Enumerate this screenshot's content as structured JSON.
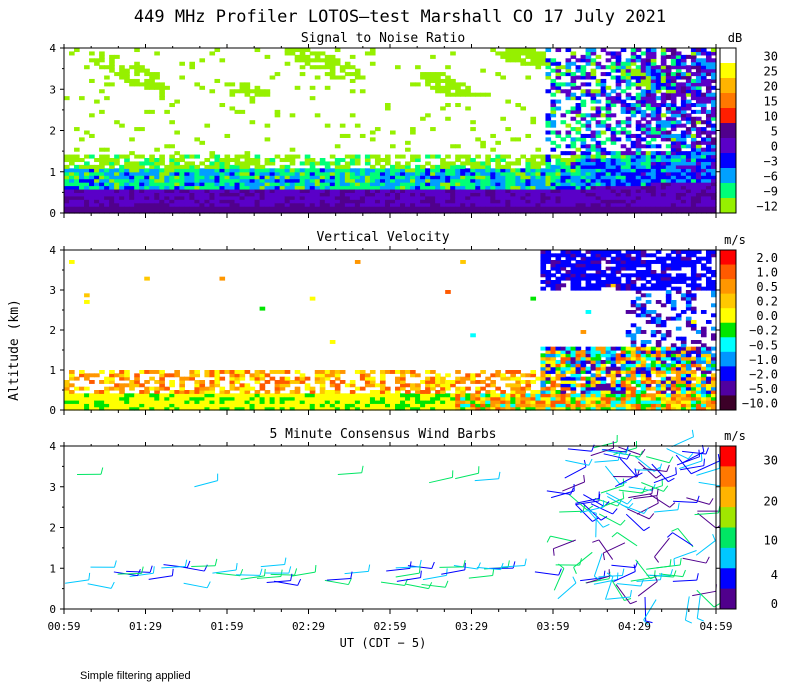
{
  "title": "449 MHz Profiler LOTOS—test Marshall CO 17 July 2021",
  "ylabel": "Altitude (km)",
  "xlabel": "UT  (CDT − 5)",
  "footnote": "Simple filtering applied",
  "x_ticks": [
    "00:59",
    "01:29",
    "01:59",
    "02:29",
    "02:59",
    "03:29",
    "03:59",
    "04:29",
    "04:59"
  ],
  "y_ticks": [
    "0",
    "1",
    "2",
    "3",
    "4"
  ],
  "chart_data": [
    {
      "type": "heatmap",
      "title": "Signal to Noise Ratio",
      "x_range_hours": [
        0.983,
        4.983
      ],
      "ylim": [
        0,
        4
      ],
      "colorbar_unit": "dB",
      "colorbar_labels": [
        "30",
        "25",
        "20",
        "15",
        "10",
        "5",
        "0",
        "−3",
        "−6",
        "−9",
        "−12"
      ],
      "colorbar_colors": [
        "#ffffff",
        "#ffff00",
        "#ffb400",
        "#ff7800",
        "#ff1e00",
        "#50008c",
        "#5a00c8",
        "#0000ff",
        "#00a0ff",
        "#00ff78",
        "#96f000"
      ],
      "description_values": {
        "low_layer_km": [
          0,
          0.7,
          5
        ],
        "noise_layer_km": [
          0.7,
          1.2,
          -3
        ]
      }
    },
    {
      "type": "heatmap",
      "title": "Vertical Velocity",
      "x_range_hours": [
        0.983,
        4.983
      ],
      "ylim": [
        0,
        4
      ],
      "colorbar_unit": "m/s",
      "colorbar_labels": [
        "2.0",
        "1.0",
        "0.5",
        "0.2",
        "0.0",
        "−0.2",
        "−0.5",
        "−1.0",
        "−2.0",
        "−5.0",
        "−10.0"
      ],
      "colorbar_colors": [
        "#ff0000",
        "#ff5a00",
        "#ff9600",
        "#ffc800",
        "#ffff00",
        "#00e600",
        "#00ffff",
        "#0096ff",
        "#0000ff",
        "#5000a0",
        "#3c0028"
      ]
    },
    {
      "type": "scatter",
      "title": "5 Minute Consensus Wind Barbs",
      "x_range_hours": [
        0.983,
        4.983
      ],
      "ylim": [
        0,
        4
      ],
      "colorbar_unit": "m/s",
      "colorbar_labels": [
        "30",
        "20",
        "10",
        "4",
        "0"
      ],
      "colorbar_colors": [
        "#ff0000",
        "#ff7800",
        "#ffb400",
        "#a0e600",
        "#00e664",
        "#00c8ff",
        "#0000ff",
        "#50008c"
      ]
    }
  ]
}
